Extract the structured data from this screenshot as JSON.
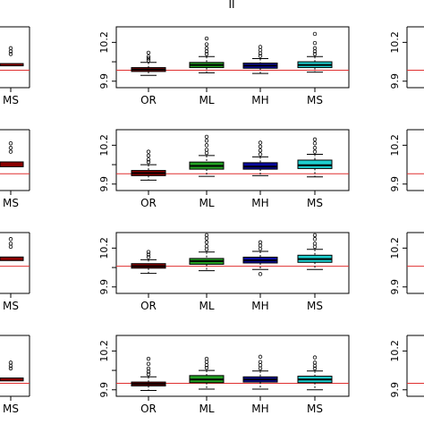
{
  "header": {
    "column_label": "II"
  },
  "left_column": {
    "category_label": "MS"
  },
  "right_column": {
    "tick_labels": [
      "10.2",
      "9.9"
    ]
  },
  "colors": {
    "OR": "#8b0000",
    "ML": "#22a022",
    "MH": "#0a0aa0",
    "MS": "#1ecfcf",
    "reference_line": "#e03030"
  },
  "chart_data": [
    {
      "type": "box",
      "row": 1,
      "categories": [
        "OR",
        "ML",
        "MH",
        "MS"
      ],
      "yticks": [
        "9.9",
        "10.2"
      ],
      "ylim": [
        9.85,
        10.32
      ],
      "reference_value": 9.985,
      "boxes": [
        {
          "q1": 9.975,
          "median": 9.99,
          "q3": 10.005,
          "lo": 9.945,
          "hi": 10.045,
          "outliers": [
            10.06,
            10.075,
            10.09,
            10.12
          ]
        },
        {
          "q1": 10.005,
          "median": 10.025,
          "q3": 10.045,
          "lo": 9.965,
          "hi": 10.09,
          "outliers": [
            10.11,
            10.13,
            10.155,
            10.185,
            10.23
          ]
        },
        {
          "q1": 10.0,
          "median": 10.02,
          "q3": 10.04,
          "lo": 9.96,
          "hi": 10.075,
          "outliers": [
            10.095,
            10.115,
            10.14,
            10.165
          ]
        },
        {
          "q1": 10.005,
          "median": 10.025,
          "q3": 10.05,
          "lo": 9.97,
          "hi": 10.09,
          "outliers": [
            10.11,
            10.13,
            10.155,
            10.195,
            10.265
          ]
        }
      ]
    },
    {
      "type": "box",
      "row": 2,
      "categories": [
        "OR",
        "ML",
        "MH",
        "MS"
      ],
      "yticks": [
        "9.9",
        "10.2"
      ],
      "ylim": [
        9.85,
        10.32
      ],
      "reference_value": 9.98,
      "boxes": [
        {
          "q1": 9.965,
          "median": 9.985,
          "q3": 10.005,
          "lo": 9.93,
          "hi": 10.05,
          "outliers": [
            10.07,
            10.09,
            10.12,
            10.15
          ]
        },
        {
          "q1": 10.015,
          "median": 10.04,
          "q3": 10.07,
          "lo": 9.96,
          "hi": 10.12,
          "outliers": [
            10.14,
            10.165,
            10.2,
            10.235,
            10.265
          ]
        },
        {
          "q1": 10.015,
          "median": 10.035,
          "q3": 10.065,
          "lo": 9.965,
          "hi": 10.11,
          "outliers": [
            10.13,
            10.16,
            10.19,
            10.22
          ]
        },
        {
          "q1": 10.02,
          "median": 10.045,
          "q3": 10.085,
          "lo": 9.955,
          "hi": 10.13,
          "outliers": [
            10.15,
            10.18,
            10.215,
            10.245
          ]
        }
      ]
    },
    {
      "type": "box",
      "row": 3,
      "categories": [
        "OR",
        "ML",
        "MH",
        "MS"
      ],
      "yticks": [
        "9.9",
        "10.2"
      ],
      "ylim": [
        9.85,
        10.32
      ],
      "reference_value": 10.06,
      "boxes": [
        {
          "q1": 10.045,
          "median": 10.06,
          "q3": 10.08,
          "lo": 10.005,
          "hi": 10.11,
          "outliers": [
            10.13,
            10.15,
            10.17
          ]
        },
        {
          "q1": 10.075,
          "median": 10.1,
          "q3": 10.12,
          "lo": 10.025,
          "hi": 10.17,
          "outliers": [
            10.19,
            10.215,
            10.245,
            10.275,
            10.3
          ]
        },
        {
          "q1": 10.085,
          "median": 10.105,
          "q3": 10.13,
          "lo": 10.035,
          "hi": 10.175,
          "outliers": [
            10.195,
            10.22,
            10.245,
            10.0
          ]
        },
        {
          "q1": 10.09,
          "median": 10.115,
          "q3": 10.145,
          "lo": 10.035,
          "hi": 10.19,
          "outliers": [
            10.21,
            10.235,
            10.27,
            10.3
          ]
        }
      ]
    },
    {
      "type": "box",
      "row": 4,
      "categories": [
        "OR",
        "ML",
        "MH",
        "MS"
      ],
      "yticks": [
        "9.9",
        "10.2"
      ],
      "ylim": [
        9.85,
        10.32
      ],
      "reference_value": 9.95,
      "boxes": [
        {
          "q1": 9.93,
          "median": 9.945,
          "q3": 9.96,
          "lo": 9.895,
          "hi": 10.0,
          "outliers": [
            10.02,
            10.04,
            10.065,
            10.1,
            10.14
          ]
        },
        {
          "q1": 9.955,
          "median": 9.98,
          "q3": 10.01,
          "lo": 9.905,
          "hi": 10.05,
          "outliers": [
            10.07,
            10.09,
            10.115,
            10.14
          ]
        },
        {
          "q1": 9.96,
          "median": 9.98,
          "q3": 10.0,
          "lo": 9.905,
          "hi": 10.045,
          "outliers": [
            10.065,
            10.09,
            10.115,
            10.155
          ]
        },
        {
          "q1": 9.955,
          "median": 9.98,
          "q3": 10.005,
          "lo": 9.9,
          "hi": 10.045,
          "outliers": [
            10.065,
            10.085,
            10.11,
            10.15
          ]
        }
      ]
    }
  ]
}
